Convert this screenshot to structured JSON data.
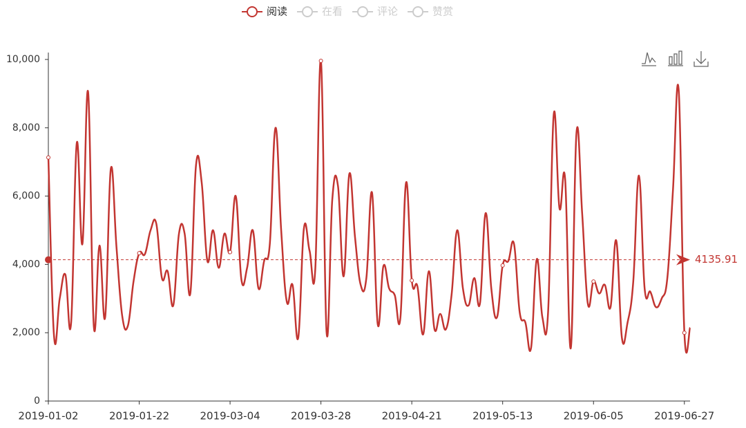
{
  "chart_data": {
    "type": "line",
    "legend": [
      {
        "name": "阅读",
        "active": true
      },
      {
        "name": "在看",
        "active": false
      },
      {
        "name": "评论",
        "active": false
      },
      {
        "name": "赞赏",
        "active": false
      }
    ],
    "categories": [
      "2019-01-02",
      null,
      null,
      null,
      null,
      null,
      null,
      null,
      null,
      null,
      null,
      null,
      null,
      null,
      null,
      null,
      "2019-01-22",
      null,
      null,
      null,
      null,
      null,
      null,
      null,
      null,
      null,
      null,
      null,
      null,
      null,
      null,
      null,
      "2019-03-04",
      null,
      null,
      null,
      null,
      null,
      null,
      null,
      null,
      null,
      null,
      null,
      null,
      null,
      null,
      null,
      "2019-03-28",
      null,
      null,
      null,
      null,
      null,
      null,
      null,
      null,
      null,
      null,
      null,
      null,
      null,
      null,
      null,
      "2019-04-21",
      null,
      null,
      null,
      null,
      null,
      null,
      null,
      null,
      null,
      null,
      null,
      null,
      null,
      null,
      null,
      "2019-05-13",
      null,
      null,
      null,
      null,
      null,
      null,
      null,
      null,
      null,
      null,
      null,
      null,
      null,
      null,
      null,
      "2019-06-05",
      null,
      null,
      null,
      null,
      null,
      null,
      null,
      null,
      null,
      null,
      null,
      null,
      null,
      null,
      null,
      "2019-06-27",
      null
    ],
    "series": [
      {
        "name": "阅读",
        "color": "#c23531",
        "values": [
          7130,
          1900,
          3000,
          3700,
          2270,
          7550,
          4600,
          9050,
          2200,
          4550,
          2450,
          6800,
          4500,
          2500,
          2200,
          3500,
          4330,
          4300,
          5000,
          5200,
          3600,
          3800,
          2800,
          4900,
          4900,
          3150,
          6900,
          6400,
          4100,
          5000,
          3900,
          4900,
          4360,
          6000,
          3550,
          3900,
          5000,
          3300,
          4100,
          4600,
          8000,
          5000,
          2900,
          3400,
          1850,
          5050,
          4400,
          3850,
          9960,
          2000,
          5900,
          6300,
          3650,
          6650,
          4800,
          3400,
          3600,
          6100,
          2250,
          3950,
          3300,
          3100,
          2450,
          6400,
          3530,
          3350,
          1950,
          3800,
          2100,
          2550,
          2100,
          3100,
          5000,
          3300,
          2800,
          3600,
          2850,
          5500,
          3300,
          2450,
          3970,
          4100,
          4600,
          2600,
          2300,
          1550,
          4150,
          2450,
          2600,
          8400,
          5650,
          6500,
          1550,
          7850,
          5500,
          2850,
          3500,
          3150,
          3400,
          2750,
          4700,
          1850,
          2300,
          3500,
          6600,
          3300,
          3200,
          2750,
          3000,
          3600,
          6200,
          9100,
          2000,
          2150
        ]
      }
    ],
    "average_line": {
      "value": 4135.91
    },
    "ylim": [
      0,
      10000
    ],
    "yticks": [
      0,
      {
        "value": 2000,
        "label": "2,000"
      },
      {
        "value": 4000,
        "label": "4,000"
      },
      {
        "value": 6000,
        "label": "6,000"
      },
      {
        "value": 8000,
        "label": "8,000"
      },
      {
        "value": 10000,
        "label": "10,000"
      }
    ]
  }
}
